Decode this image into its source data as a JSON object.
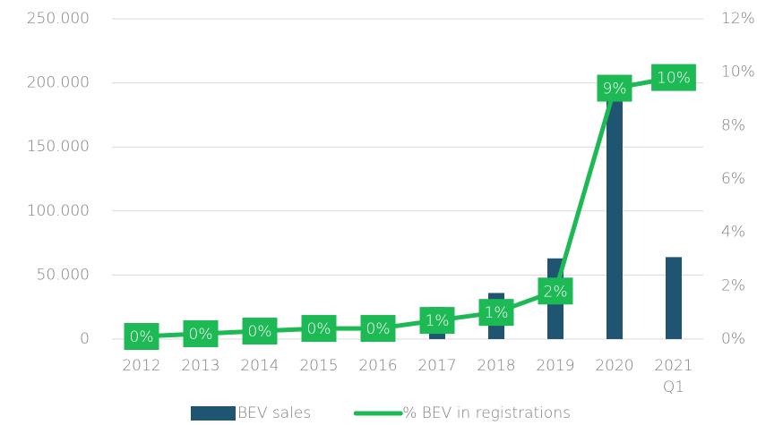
{
  "chart_data": {
    "type": "bar",
    "categories": [
      "2012",
      "2013",
      "2014",
      "2015",
      "2016",
      "2017",
      "2018",
      "2019",
      "2020",
      "2021 Q1"
    ],
    "series": [
      {
        "name": "BEV sales",
        "type": "bar",
        "color": "#1f5570",
        "values": [
          3000,
          6000,
          8500,
          12000,
          11000,
          25000,
          36000,
          63000,
          194000,
          64000
        ]
      },
      {
        "name": "% BEV in registrations",
        "type": "line",
        "axis": "y2",
        "color": "#1db954",
        "values": [
          0.1,
          0.2,
          0.3,
          0.4,
          0.4,
          0.7,
          1.0,
          1.8,
          9.4,
          9.8
        ],
        "value_labels": [
          "0%",
          "0%",
          "0%",
          "0%",
          "0%",
          "1%",
          "1%",
          "2%",
          "9%",
          "10%"
        ]
      }
    ],
    "ylim": [
      0,
      250000
    ],
    "yticks": [
      0,
      {
        "value": 50000,
        "label": "50.000"
      },
      {
        "value": 100000,
        "label": "100.000"
      },
      {
        "value": 150000,
        "label": "150.000"
      },
      {
        "value": 200000,
        "label": "200.000"
      },
      {
        "value": 250000,
        "label": "250.000"
      }
    ],
    "y2lim": [
      0,
      12
    ],
    "y2ticks": [
      {
        "value": 0,
        "label": "0%"
      },
      {
        "value": 2,
        "label": "2%"
      },
      {
        "value": 4,
        "label": "4%"
      },
      {
        "value": 6,
        "label": "6%"
      },
      {
        "value": 8,
        "label": "8%"
      },
      {
        "value": 10,
        "label": "10%"
      },
      {
        "value": 12,
        "label": "12%"
      }
    ],
    "grid": true,
    "legend": "bottom"
  }
}
